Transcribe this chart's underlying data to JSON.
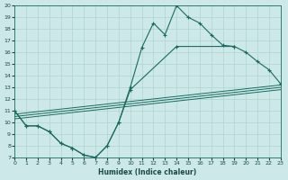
{
  "xlabel": "Humidex (Indice chaleur)",
  "xlim": [
    0,
    23
  ],
  "ylim": [
    7,
    20
  ],
  "xticks": [
    0,
    1,
    2,
    3,
    4,
    5,
    6,
    7,
    8,
    9,
    10,
    11,
    12,
    13,
    14,
    15,
    16,
    17,
    18,
    19,
    20,
    21,
    22,
    23
  ],
  "yticks": [
    7,
    8,
    9,
    10,
    11,
    12,
    13,
    14,
    15,
    16,
    17,
    18,
    19,
    20
  ],
  "bg_color": "#cce8e8",
  "line_color": "#1a6b5e",
  "grid_color": "#b0d4d0",
  "line_upper_x": [
    0,
    1,
    2,
    3,
    4,
    5,
    6,
    7,
    8,
    9,
    10,
    11,
    12,
    13,
    14,
    15,
    16,
    17,
    18,
    19
  ],
  "line_upper_y": [
    11.0,
    9.7,
    9.7,
    9.2,
    8.2,
    7.8,
    7.2,
    7.0,
    8.0,
    10.0,
    13.0,
    16.4,
    18.5,
    17.5,
    20.0,
    19.0,
    18.5,
    17.5,
    16.6,
    16.5
  ],
  "line_lower_x": [
    0,
    1,
    2,
    3,
    4,
    5,
    6,
    7,
    8,
    9,
    10,
    14,
    19,
    20,
    21,
    22,
    23
  ],
  "line_lower_y": [
    11.0,
    9.7,
    9.7,
    9.2,
    8.2,
    7.8,
    7.2,
    7.0,
    8.0,
    10.0,
    12.8,
    16.5,
    16.5,
    16.0,
    15.2,
    14.5,
    13.3
  ],
  "trend1_x": [
    0,
    23
  ],
  "trend1_y": [
    10.3,
    12.8
  ],
  "trend2_x": [
    0,
    23
  ],
  "trend2_y": [
    10.5,
    13.0
  ],
  "trend3_x": [
    0,
    23
  ],
  "trend3_y": [
    10.7,
    13.2
  ]
}
